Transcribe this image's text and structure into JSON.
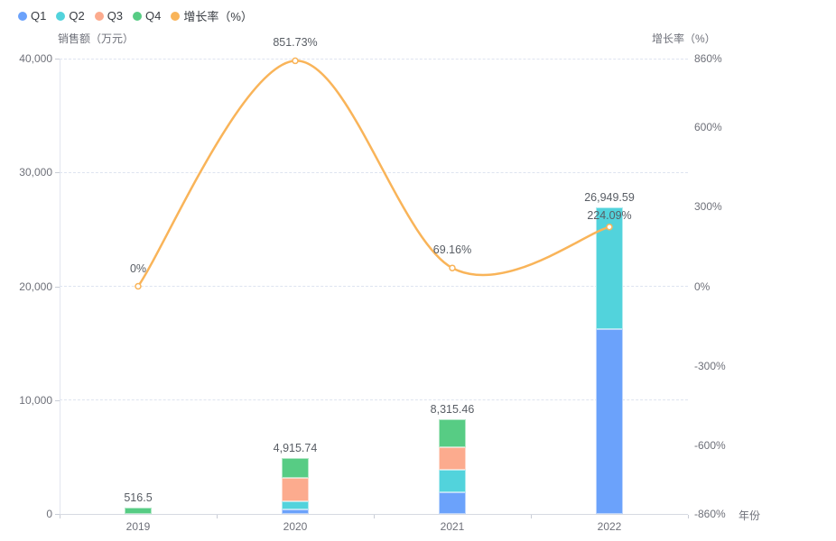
{
  "chart_data": {
    "type": "bar",
    "subtype": "stacked-bar-with-line-dual-axis",
    "categories": [
      "2019",
      "2020",
      "2021",
      "2022"
    ],
    "series": [
      {
        "name": "Q1",
        "kind": "bar",
        "color": "#6ba2fb",
        "values": [
          0,
          360,
          1900,
          16250
        ]
      },
      {
        "name": "Q2",
        "kind": "bar",
        "color": "#52d3dc",
        "values": [
          0,
          715,
          1980,
          10699.59
        ]
      },
      {
        "name": "Q3",
        "kind": "bar",
        "color": "#fcab8e",
        "values": [
          0,
          2090,
          1980,
          0
        ]
      },
      {
        "name": "Q4",
        "kind": "bar",
        "color": "#57cc84",
        "values": [
          516.5,
          1750.74,
          2455.46,
          0
        ]
      },
      {
        "name": "增长率（%）",
        "kind": "line",
        "axis": "right",
        "color": "#f9b459",
        "values": [
          0,
          851.73,
          69.16,
          224.09
        ]
      }
    ],
    "stack_totals": [
      516.5,
      4915.74,
      8315.46,
      26949.59
    ],
    "total_labels": [
      "516.5",
      "4,915.74",
      "8,315.46",
      "26,949.59"
    ],
    "line_labels": [
      "0%",
      "851.73%",
      "69.16%",
      "224.09%"
    ],
    "left_axis": {
      "title": "销售额（万元）",
      "min": 0,
      "max": 40000,
      "tick_values": [
        0,
        10000,
        20000,
        30000,
        40000
      ],
      "tick_labels": [
        "0",
        "10,000",
        "20,000",
        "30,000",
        "40,000"
      ]
    },
    "right_axis": {
      "title": "增长率（%）",
      "min": -860,
      "max": 860,
      "tick_values": [
        860,
        600,
        300,
        0,
        -300,
        -600,
        -860
      ],
      "tick_labels": [
        "860%",
        "600%",
        "300%",
        "0%",
        "-300%",
        "-600%",
        "-860%"
      ]
    },
    "x_axis": {
      "title": "年份",
      "labels": [
        "2019",
        "2020",
        "2021",
        "2022"
      ]
    },
    "grid": true,
    "legend_position": "top-left",
    "colors": {
      "grid_line": "#dee4f0",
      "axis_line": "#d6dae2",
      "tick_text": "#6e7079",
      "value_label_text": "#585d64",
      "background": "#ffffff"
    }
  }
}
